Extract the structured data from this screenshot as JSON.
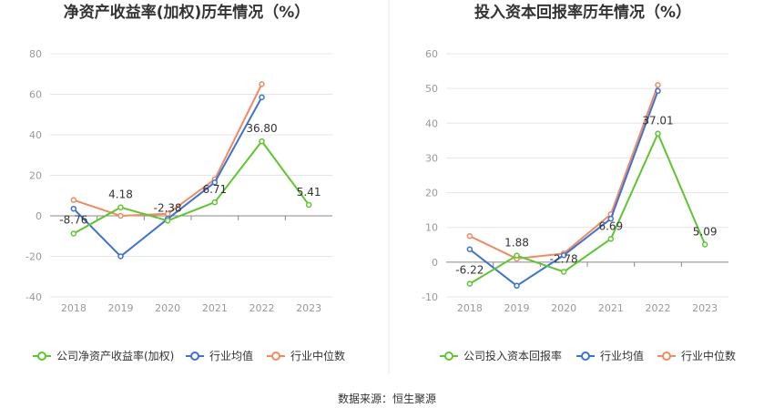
{
  "colors": {
    "company": "#5ec630",
    "average": "#3c72d6",
    "median": "#f08a60",
    "grid": "#e6e6e6",
    "divider": "#e8e8e8"
  },
  "source": "数据来源：恒生聚源",
  "chart_data": [
    {
      "type": "line",
      "title": "净资产收益率(加权)历年情况（%）",
      "categories": [
        "2018",
        "2019",
        "2020",
        "2021",
        "2022",
        "2023"
      ],
      "ylim": [
        -40,
        80
      ],
      "yticks": [
        -40,
        -20,
        0,
        20,
        40,
        60,
        80
      ],
      "grid": true,
      "legend_position": "bottom",
      "series": [
        {
          "name": "公司净资产收益率(加权)",
          "values": [
            -8.76,
            4.18,
            -2.38,
            6.71,
            36.8,
            5.41
          ],
          "labels": [
            "-8.76",
            "4.18",
            "-2.38",
            "6.71",
            "36.80",
            "5.41"
          ]
        },
        {
          "name": "行业均值",
          "values": [
            3.5,
            -20.0,
            -1.5,
            16.5,
            58.5,
            null
          ]
        },
        {
          "name": "行业中位数",
          "values": [
            7.8,
            0.0,
            1.0,
            18.0,
            65.0,
            null
          ]
        }
      ]
    },
    {
      "type": "line",
      "title": "投入资本回报率历年情况（%）",
      "categories": [
        "2018",
        "2019",
        "2020",
        "2021",
        "2022",
        "2023"
      ],
      "ylim": [
        -10,
        60
      ],
      "yticks": [
        -10,
        0,
        10,
        20,
        30,
        40,
        50,
        60
      ],
      "grid": true,
      "legend_position": "bottom",
      "series": [
        {
          "name": "公司投入资本回报率",
          "values": [
            -6.22,
            1.88,
            -2.78,
            6.69,
            37.01,
            5.09
          ],
          "labels": [
            "-6.22",
            "1.88",
            "-2.78",
            "6.69",
            "37.01",
            "5.09"
          ]
        },
        {
          "name": "行业均值",
          "values": [
            3.7,
            -6.8,
            2.0,
            12.5,
            49.3,
            null
          ]
        },
        {
          "name": "行业中位数",
          "values": [
            7.5,
            1.0,
            2.5,
            13.8,
            51.0,
            null
          ]
        }
      ]
    }
  ]
}
